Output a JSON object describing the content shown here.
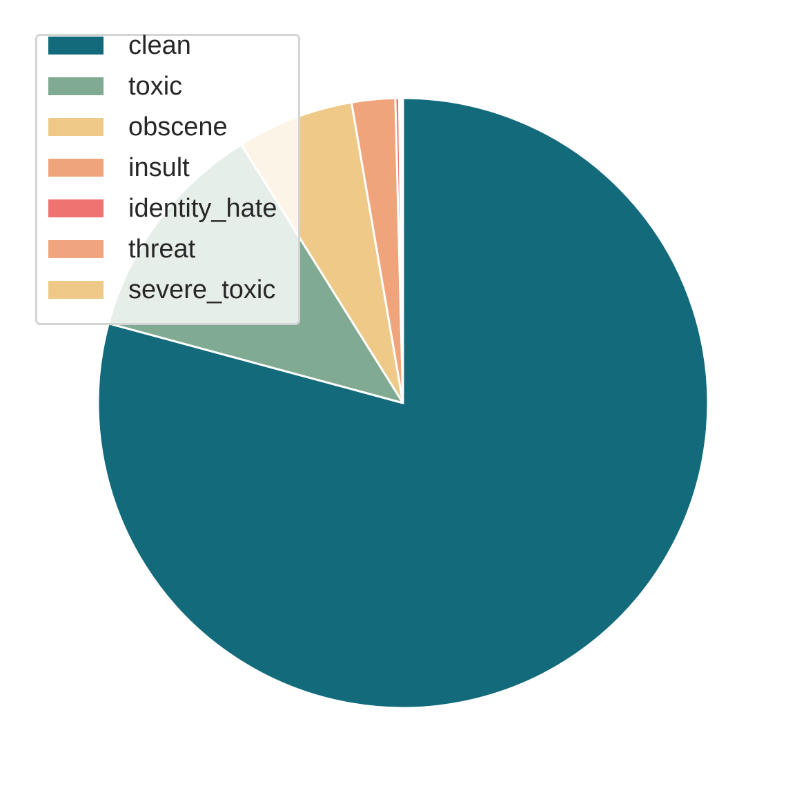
{
  "chart_data": {
    "type": "pie",
    "title": "",
    "start": "top",
    "direction": "clockwise",
    "legend_position": "top-left",
    "slices": [
      {
        "label": "clean",
        "value": 79.2,
        "color": "#126a7b"
      },
      {
        "label": "toxic",
        "value": 11.9,
        "color": "#80aa92"
      },
      {
        "label": "obscene",
        "value": 6.2,
        "color": "#efc987"
      },
      {
        "label": "insult",
        "value": 2.3,
        "color": "#efa47c"
      },
      {
        "label": "identity_hate",
        "value": 0.2,
        "color": "#ef7471"
      },
      {
        "label": "threat",
        "value": 0.1,
        "color": "#f0a57f"
      },
      {
        "label": "severe_toxic",
        "value": 0.1,
        "color": "#efc987"
      }
    ]
  }
}
